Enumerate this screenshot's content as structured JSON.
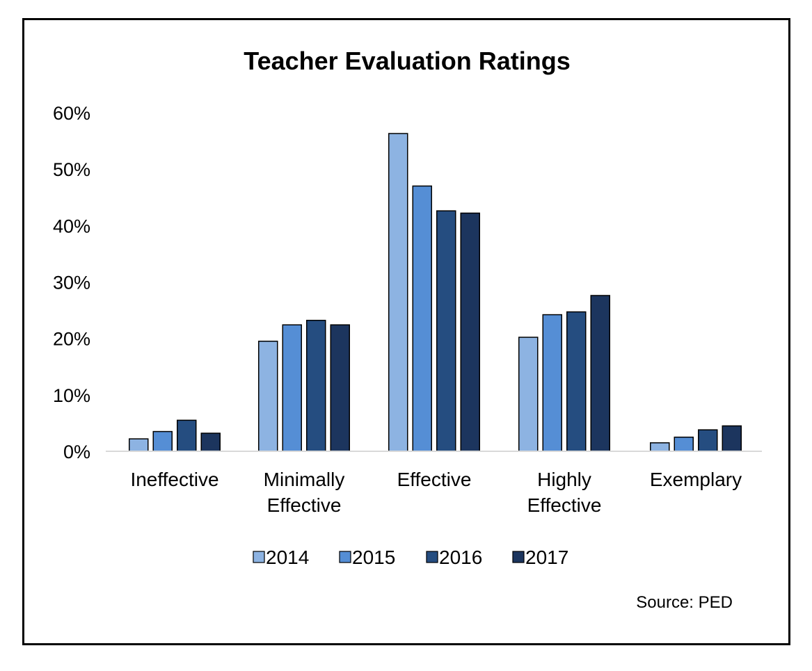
{
  "chart_data": {
    "type": "bar",
    "title": "Teacher Evaluation Ratings",
    "categories": [
      [
        "Ineffective"
      ],
      [
        "Minimally",
        "Effective"
      ],
      [
        "Effective"
      ],
      [
        "Highly",
        "Effective"
      ],
      [
        "Exemplary"
      ]
    ],
    "series": [
      {
        "name": "2014",
        "color": "#8db3e2",
        "values": [
          2.2,
          19.5,
          56.3,
          20.2,
          1.5
        ]
      },
      {
        "name": "2015",
        "color": "#558ed5",
        "values": [
          3.5,
          22.4,
          47.0,
          24.2,
          2.5
        ]
      },
      {
        "name": "2016",
        "color": "#254d80",
        "values": [
          5.5,
          23.2,
          42.6,
          24.7,
          3.8
        ]
      },
      {
        "name": "2017",
        "color": "#1c355e",
        "values": [
          3.2,
          22.4,
          42.2,
          27.6,
          4.5
        ]
      }
    ],
    "ylim": [
      0,
      60
    ],
    "yticks": [
      0,
      10,
      20,
      30,
      40,
      50,
      60
    ],
    "ytick_labels": [
      "0%",
      "10%",
      "20%",
      "30%",
      "40%",
      "50%",
      "60%"
    ],
    "xlabel": "",
    "ylabel": "",
    "grid": false,
    "legend_position": "bottom",
    "source": "Source: PED"
  }
}
